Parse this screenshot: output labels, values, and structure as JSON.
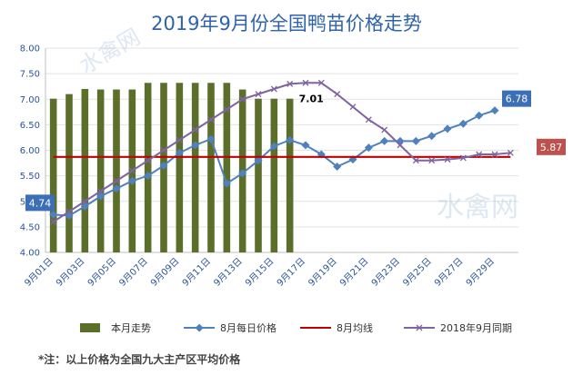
{
  "title": "2019年9月份全国鸭苗价格走势",
  "footnote": "*注：以上价格为全国九大主产区平均价格",
  "watermark": "水禽网",
  "chart_data": {
    "type": "bar",
    "title": "2019年9月份全国鸭苗价格走势",
    "ylim": [
      4.0,
      8.0
    ],
    "y_ticks": [
      "4.00",
      "4.50",
      "5.00",
      "5.50",
      "6.00",
      "6.50",
      "7.00",
      "7.50",
      "8.00"
    ],
    "x_tick_labels": [
      "9月01日",
      "9月03日",
      "9月05日",
      "9月07日",
      "9月09日",
      "9月11日",
      "9月13日",
      "9月15日",
      "9月17日",
      "9月19日",
      "9月21日",
      "9月23日",
      "9月25日",
      "9月27日",
      "9月29日"
    ],
    "days": [
      1,
      2,
      3,
      4,
      5,
      6,
      7,
      8,
      9,
      10,
      11,
      12,
      13,
      14,
      15,
      16,
      17,
      18,
      19,
      20,
      21,
      22,
      23,
      24,
      25,
      26,
      27,
      28,
      29,
      30
    ],
    "legend_position": "bottom",
    "series": [
      {
        "name": "本月走势",
        "type": "bar",
        "color": "#5b6e2a",
        "values": [
          7.01,
          7.1,
          7.2,
          7.19,
          7.19,
          7.19,
          7.32,
          7.32,
          7.32,
          7.32,
          7.32,
          7.32,
          7.19,
          7.01,
          7.01,
          7.01
        ]
      },
      {
        "name": "8月每日价格",
        "type": "line",
        "color": "#4f81bd",
        "values": [
          4.74,
          4.72,
          4.9,
          5.1,
          5.25,
          5.4,
          5.5,
          5.7,
          5.95,
          6.1,
          6.22,
          5.35,
          5.55,
          5.8,
          6.08,
          6.2,
          6.1,
          5.92,
          5.68,
          5.82,
          6.05,
          6.18,
          6.18,
          6.18,
          6.28,
          6.42,
          6.52,
          6.68,
          6.78,
          null
        ]
      },
      {
        "name": "8月均线",
        "type": "line",
        "color": "#c00000",
        "values": [
          5.87,
          5.87,
          5.87,
          5.87,
          5.87,
          5.87,
          5.87,
          5.87,
          5.87,
          5.87,
          5.87,
          5.87,
          5.87,
          5.87,
          5.87,
          5.87,
          5.87,
          5.87,
          5.87,
          5.87,
          5.87,
          5.87,
          5.87,
          5.87,
          5.87,
          5.87,
          5.87,
          5.87,
          5.87,
          5.87
        ]
      },
      {
        "name": "2018年9月同期",
        "type": "line",
        "color": "#8064a2",
        "values": [
          4.6,
          4.8,
          5.0,
          5.2,
          5.4,
          5.6,
          5.8,
          6.0,
          6.2,
          6.4,
          6.6,
          6.8,
          7.0,
          7.1,
          7.2,
          7.3,
          7.32,
          7.32,
          7.1,
          6.85,
          6.6,
          6.4,
          6.1,
          5.8,
          5.8,
          5.82,
          5.85,
          5.92,
          5.92,
          5.95
        ]
      }
    ],
    "annotations": [
      {
        "text": "4.74",
        "series": "8月每日价格",
        "day": 1,
        "style": "box",
        "color": "#3b6fb6"
      },
      {
        "text": "7.01",
        "series": "本月走势",
        "day": 16,
        "style": "plain",
        "color": "#000000"
      },
      {
        "text": "6.78",
        "series": "8月每日价格",
        "day": 29,
        "style": "box",
        "color": "#3b6fb6"
      },
      {
        "text": "5.87",
        "series": "8月均线",
        "day": 30,
        "style": "box",
        "color": "#c0504d"
      }
    ]
  }
}
